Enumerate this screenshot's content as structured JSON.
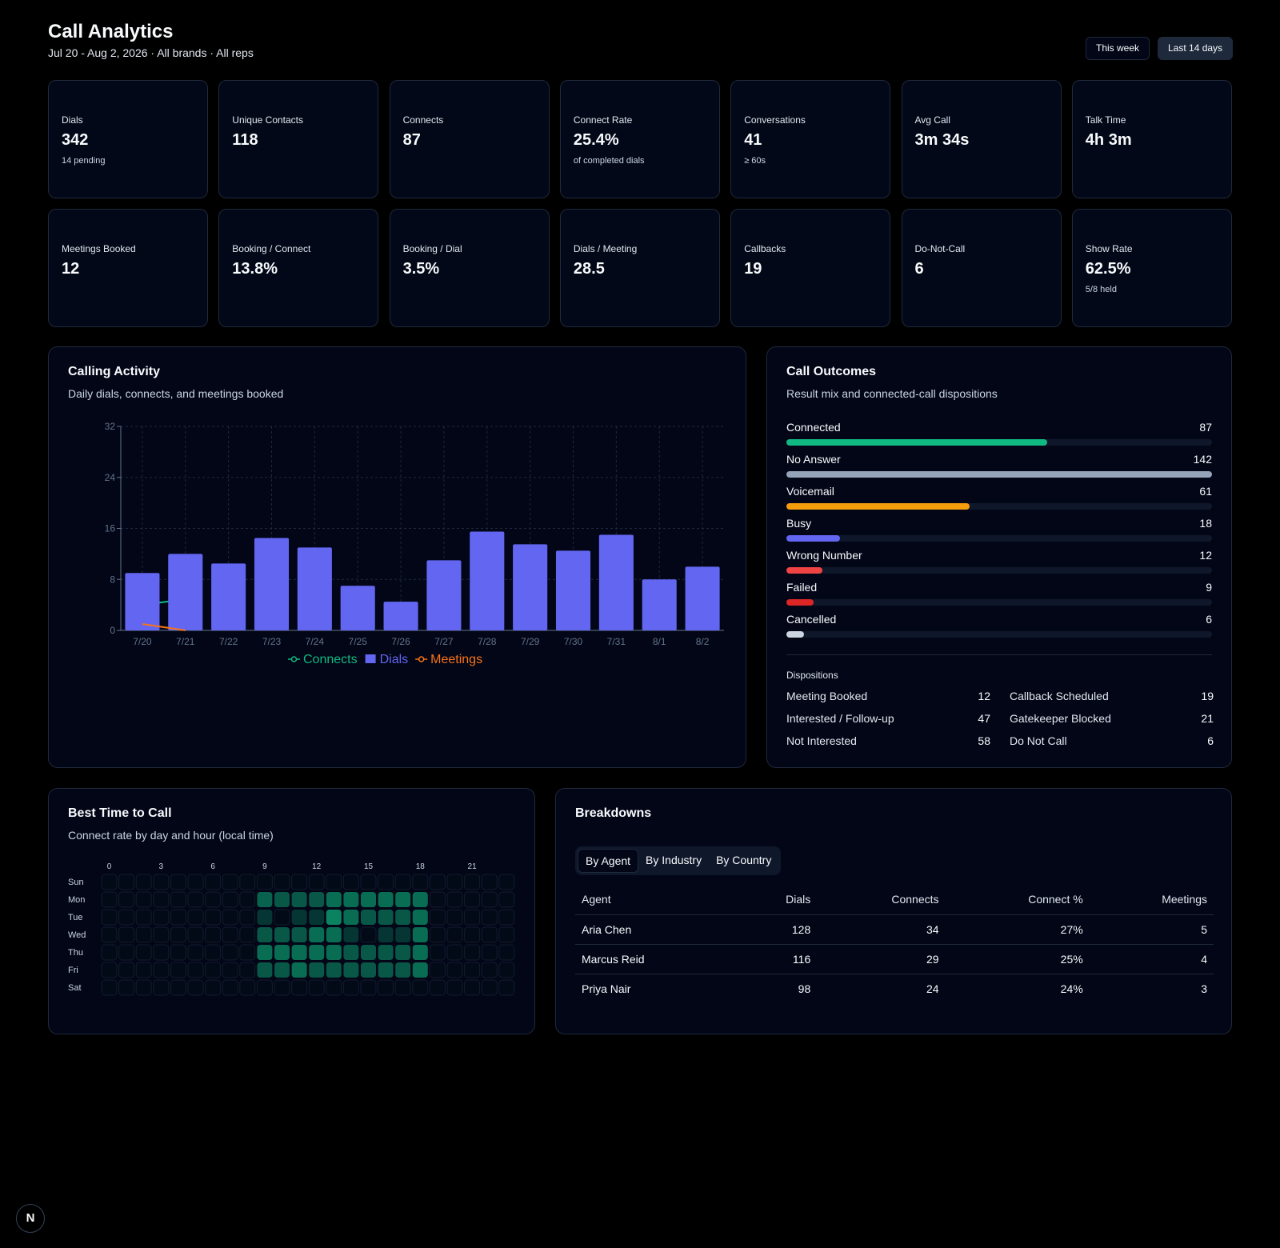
{
  "header": {
    "title": "Call Analytics",
    "subtitle": "Jul 20 - Aug 2, 2026 · All brands · All reps",
    "buttons": [
      "This week",
      "Last 14 days"
    ]
  },
  "kpis": [
    {
      "label": "Dials",
      "value": "342",
      "note": "14 pending"
    },
    {
      "label": "Unique Contacts",
      "value": "118"
    },
    {
      "label": "Connects",
      "value": "87"
    },
    {
      "label": "Connect Rate",
      "value": "25.4%",
      "note": "of completed dials"
    },
    {
      "label": "Conversations",
      "value": "41",
      "note": "≥ 60s"
    },
    {
      "label": "Avg Call",
      "value": "3m 34s"
    },
    {
      "label": "Talk Time",
      "value": "4h 3m"
    },
    {
      "label": "Meetings Booked",
      "value": "12"
    },
    {
      "label": "Booking / Connect",
      "value": "13.8%"
    },
    {
      "label": "Booking / Dial",
      "value": "3.5%"
    },
    {
      "label": "Dials / Meeting",
      "value": "28.5"
    },
    {
      "label": "Callbacks",
      "value": "19"
    },
    {
      "label": "Do-Not-Call",
      "value": "6"
    },
    {
      "label": "Show Rate",
      "value": "62.5%",
      "note": "5/8 held"
    }
  ],
  "chart_data": [
    {
      "type": "bar",
      "title": "Calling Activity",
      "subtitle": "Daily dials, connects, and meetings booked",
      "categories": [
        "7/20",
        "7/21",
        "7/22",
        "7/23",
        "7/24",
        "7/25",
        "7/26",
        "7/27",
        "7/28",
        "7/29",
        "7/30",
        "7/31",
        "8/1",
        "8/2"
      ],
      "series": [
        {
          "name": "Connects",
          "type": "line",
          "color": "#10b981",
          "values": [
            4,
            4.9,
            null,
            null,
            null,
            null,
            null,
            null,
            null,
            null,
            null,
            null,
            null,
            null
          ]
        },
        {
          "name": "Dials",
          "type": "bar",
          "color": "#6366f1",
          "values": [
            9,
            12,
            10.5,
            14.5,
            13,
            7,
            4.5,
            11,
            15.5,
            13.5,
            12.5,
            15,
            8,
            10
          ]
        },
        {
          "name": "Meetings",
          "type": "line",
          "color": "#f97316",
          "values": [
            1,
            0,
            null,
            null,
            null,
            null,
            null,
            null,
            null,
            null,
            null,
            null,
            null,
            null
          ]
        }
      ],
      "ylim": [
        0,
        32
      ],
      "yticks": [
        0,
        8,
        16,
        24,
        32
      ],
      "grid": true
    },
    {
      "type": "hbar",
      "title": "Call Outcomes",
      "subtitle": "Result mix and connected-call dispositions",
      "categories": [
        "Connected",
        "No Answer",
        "Voicemail",
        "Busy",
        "Wrong Number",
        "Failed",
        "Cancelled"
      ],
      "values": [
        87,
        142,
        61,
        18,
        12,
        9,
        6
      ],
      "colors": [
        "#10b981",
        "#94a3b8",
        "#f59e0b",
        "#6366f1",
        "#ef4444",
        "#dc2626",
        "#cbd5e1"
      ],
      "dispositions": {
        "title": "Dispositions",
        "items": [
          {
            "label": "Meeting Booked",
            "value": 12
          },
          {
            "label": "Callback Scheduled",
            "value": 19
          },
          {
            "label": "Interested / Follow-up",
            "value": 47
          },
          {
            "label": "Gatekeeper Blocked",
            "value": 21
          },
          {
            "label": "Not Interested",
            "value": 58
          },
          {
            "label": "Do Not Call",
            "value": 6
          }
        ]
      }
    },
    {
      "type": "heatmap",
      "title": "Best Time to Call",
      "subtitle": "Connect rate by day and hour (local time)",
      "color": "#10b981",
      "rows": [
        "Sun",
        "Mon",
        "Tue",
        "Wed",
        "Thu",
        "Fri",
        "Sat"
      ],
      "categories": [
        0,
        null,
        null,
        3,
        null,
        null,
        6,
        null,
        null,
        9,
        null,
        null,
        12,
        null,
        null,
        15,
        null,
        null,
        18,
        null,
        null,
        21,
        null,
        null
      ],
      "values": [
        [
          0,
          0,
          0,
          0,
          0,
          0,
          0,
          0,
          0,
          0,
          0,
          0,
          0,
          0,
          0,
          0,
          0,
          0,
          0,
          0,
          0,
          0,
          0,
          0
        ],
        [
          0,
          0,
          0,
          0,
          0,
          0,
          0,
          0,
          0,
          30,
          25,
          25,
          25,
          35,
          35,
          35,
          35,
          35,
          35,
          0,
          0,
          0,
          0,
          0
        ],
        [
          0,
          0,
          0,
          0,
          0,
          0,
          0,
          0,
          0,
          10,
          0,
          10,
          10,
          45,
          35,
          25,
          25,
          25,
          35,
          0,
          0,
          0,
          0,
          0
        ],
        [
          0,
          0,
          0,
          0,
          0,
          0,
          0,
          0,
          0,
          25,
          25,
          25,
          35,
          35,
          10,
          0,
          10,
          10,
          35,
          0,
          0,
          0,
          0,
          0
        ],
        [
          0,
          0,
          0,
          0,
          0,
          0,
          0,
          0,
          0,
          35,
          35,
          35,
          35,
          35,
          25,
          25,
          25,
          25,
          35,
          0,
          0,
          0,
          0,
          0
        ],
        [
          0,
          0,
          0,
          0,
          0,
          0,
          0,
          0,
          0,
          25,
          25,
          35,
          25,
          25,
          25,
          25,
          25,
          25,
          35,
          0,
          0,
          0,
          0,
          0
        ],
        [
          0,
          0,
          0,
          0,
          0,
          0,
          0,
          0,
          0,
          0,
          0,
          0,
          0,
          0,
          0,
          0,
          0,
          0,
          0,
          0,
          0,
          0,
          0,
          0
        ]
      ]
    }
  ],
  "breakdowns": {
    "title": "Breakdowns",
    "tabs": [
      "By Agent",
      "By Industry",
      "By Country"
    ],
    "table": {
      "columns": [
        "Agent",
        "Dials",
        "Connects",
        "Connect %",
        "Meetings"
      ],
      "rows": [
        [
          "Aria Chen",
          128,
          34,
          "27%",
          5
        ],
        [
          "Marcus Reid",
          116,
          29,
          "25%",
          4
        ],
        [
          "Priya Nair",
          98,
          24,
          "24%",
          3
        ]
      ]
    }
  },
  "badge": "N"
}
